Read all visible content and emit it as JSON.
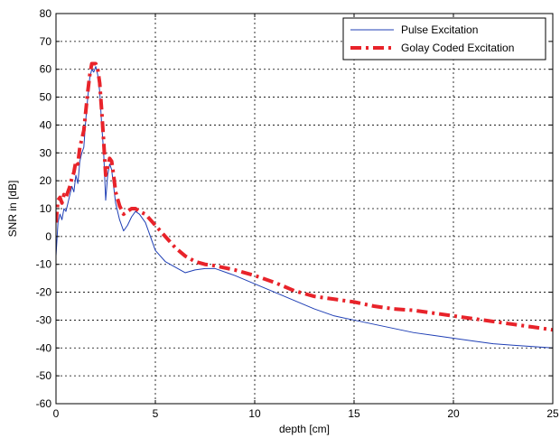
{
  "chart_data": {
    "type": "line",
    "title": "",
    "xlabel": "depth [cm]",
    "ylabel": "SNR in [dB]",
    "xlim": [
      0,
      25
    ],
    "ylim": [
      -60,
      80
    ],
    "x_ticks": [
      0,
      5,
      10,
      15,
      20,
      25
    ],
    "y_ticks": [
      -60,
      -50,
      -40,
      -30,
      -20,
      -10,
      0,
      10,
      20,
      30,
      40,
      50,
      60,
      70,
      80
    ],
    "grid": true,
    "legend_position": "top-right",
    "series": [
      {
        "name": "Pulse Excitation",
        "color": "#1f3fb5",
        "style": "solid",
        "x": [
          0,
          0.1,
          0.2,
          0.3,
          0.4,
          0.5,
          0.6,
          0.7,
          0.8,
          0.9,
          1.0,
          1.1,
          1.2,
          1.3,
          1.4,
          1.5,
          1.6,
          1.7,
          1.8,
          1.9,
          2.0,
          2.1,
          2.2,
          2.3,
          2.4,
          2.5,
          2.6,
          2.7,
          2.8,
          2.9,
          3.0,
          3.2,
          3.4,
          3.6,
          3.8,
          4.0,
          4.2,
          4.5,
          5.0,
          5.5,
          6.0,
          6.5,
          7.0,
          7.5,
          8.0,
          9.0,
          10.0,
          11.0,
          12.0,
          13.0,
          14.0,
          15.0,
          16.0,
          17.0,
          18.0,
          19.0,
          20.0,
          21.0,
          22.0,
          23.0,
          24.0,
          25.0
        ],
        "values": [
          -7,
          5,
          8,
          6,
          10,
          9,
          12,
          15,
          18,
          16,
          22,
          19,
          27,
          30,
          32,
          42,
          50,
          57,
          60,
          59,
          61,
          58,
          52,
          40,
          30,
          13,
          22,
          26,
          24,
          18,
          12,
          6,
          2,
          4,
          7,
          9,
          8,
          5,
          -5,
          -9,
          -11,
          -13,
          -12,
          -11.5,
          -11.5,
          -14,
          -17,
          -20,
          -23,
          -26,
          -28.5,
          -30,
          -31.5,
          -33,
          -34.5,
          -35.5,
          -36.5,
          -37.5,
          -38.5,
          -39,
          -39.5,
          -40
        ]
      },
      {
        "name": "Golay Coded Excitation",
        "color": "#e8232a",
        "style": "dashdot",
        "x": [
          0,
          0.1,
          0.2,
          0.3,
          0.4,
          0.5,
          0.6,
          0.7,
          0.8,
          0.9,
          1.0,
          1.1,
          1.2,
          1.3,
          1.4,
          1.5,
          1.6,
          1.7,
          1.8,
          1.9,
          2.0,
          2.1,
          2.2,
          2.3,
          2.4,
          2.5,
          2.6,
          2.7,
          2.8,
          2.9,
          3.0,
          3.2,
          3.4,
          3.6,
          3.8,
          4.0,
          4.2,
          4.5,
          5.0,
          5.5,
          6.0,
          6.5,
          7.0,
          7.5,
          8.0,
          9.0,
          10.0,
          11.0,
          12.0,
          13.0,
          14.0,
          15.0,
          16.0,
          17.0,
          18.0,
          19.0,
          20.0,
          21.0,
          22.0,
          23.0,
          24.0,
          25.0
        ],
        "values": [
          5,
          13,
          14,
          12,
          15,
          14,
          16,
          18,
          21,
          23,
          27,
          26,
          32,
          35,
          38,
          45,
          52,
          58,
          62,
          62,
          62,
          60,
          55,
          45,
          34,
          22,
          25,
          28,
          27,
          22,
          16,
          11,
          8,
          9,
          10,
          10,
          9,
          8,
          4,
          0,
          -4,
          -7,
          -9,
          -10,
          -10.5,
          -12,
          -14,
          -16.5,
          -19.5,
          -21.5,
          -22.5,
          -23.5,
          -25,
          -26,
          -26.5,
          -27.5,
          -28.5,
          -29.5,
          -30.5,
          -31.5,
          -32.5,
          -33.5
        ]
      }
    ]
  }
}
